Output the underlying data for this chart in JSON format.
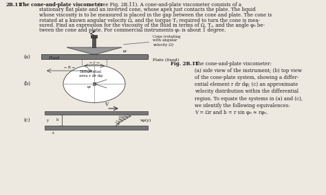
{
  "background_color": "#ede8e0",
  "title_number": "2B.11",
  "title_bold": "The cone-and-plate viscometer",
  "body_text": "(see Fig. 2B.11). A cone-and-plate viscometer consists of a stationary flat plate and an inverted cone, whose apex just contacts the plate. The liquid whose viscosity is to be measured is placed in the gap between the cone and plate. The cone is rotated at a known angular velocity Ω, and the torque Tⱼ required to turn the cone is mea-sured. Find an expression for the viscosity of the fluid in terms of Ω, Tⱼ, and the angle φ₀ be-tween the cone and plate. For commercial instruments φ₀ is about 1 degree.",
  "fig_bold": "Fig. 2B.11",
  "fig_body": "The cone-and-plate viscometer:\n(a) side view of the instrument; (b) top view\nof the cone-plate system, showing a differ-\nential element r dr dφ; (c) an approximate\nvelocity distribution within the differential\nregion. To equate the systems in (a) and (c),\nwe identify the following equivalences:\nV = Ωr and b = r sin φ₀ ≈ rφ₀.",
  "label_a": "(a)",
  "label_b": "(b)",
  "label_c": "(c)",
  "cone_label": "Cone (rotating\nwith angular\nvelocity Ω)",
  "plate_label": "Plate (fixed)",
  "fluid_label": "Fluid",
  "diff_label": "Differential\narea r dr dφ",
  "phi0": "φ₀",
  "V_text": "V",
  "vz_text": "vφ(y)",
  "r_text": "← r →",
  "R_text": "← R →",
  "text_color": "#1a1a1a",
  "gray_dark": "#555555",
  "gray_med": "#888888",
  "gray_light": "#cccccc",
  "plate_color": "#777777",
  "cone_color": "#999999"
}
